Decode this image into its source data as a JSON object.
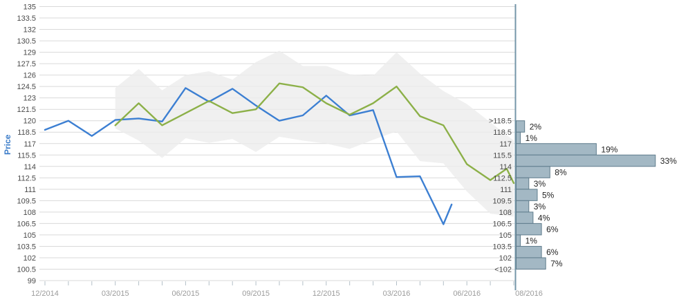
{
  "ylabel": "Price",
  "colors": {
    "blue_line": "#3c7fd2",
    "green_line": "#8cb048",
    "band_fill": "#ececec",
    "gridline": "#d9d9d9",
    "tick": "#b3bfc7",
    "x_label": "#9b9b9b",
    "y_label": "#4a4a4a",
    "bin_label": "#4a4a4a",
    "pct_label": "#1f1f1f",
    "divider": "#7496a8",
    "bar_fill": "#a3b8c4",
    "bar_stroke": "#5f7c8c",
    "ylabel_color": "#3a7bc8"
  },
  "axes": {
    "y_tick_labels": [
      "135",
      "133.5",
      "132",
      "130.5",
      "129",
      "127.5",
      "126",
      "124.5",
      "123",
      "121.5",
      "120",
      "118.5",
      "117",
      "115.5",
      "114",
      "112.5",
      "111",
      "109.5",
      "108",
      "106.5",
      "105",
      "103.5",
      "102",
      "100.5",
      "99"
    ],
    "x_tick_labels": [
      {
        "m": 0,
        "label": "12/2014"
      },
      {
        "m": 3,
        "label": "03/2015"
      },
      {
        "m": 6,
        "label": "06/2015"
      },
      {
        "m": 9,
        "label": "09/2015"
      },
      {
        "m": 12,
        "label": "12/2015"
      },
      {
        "m": 15,
        "label": "03/2016"
      },
      {
        "m": 18,
        "label": "06/2016"
      },
      {
        "m": 20,
        "label": "08/2016"
      }
    ]
  },
  "chart_data": [
    {
      "type": "line",
      "title": "",
      "xlabel": "",
      "ylabel": "Price",
      "ylim": [
        99,
        135
      ],
      "y_step": 1.5,
      "grid": true,
      "legend": "none",
      "x_unit": "months since 12/2014, monthly ticks 12/2014 to 08/2016",
      "series": [
        {
          "name": "blue-price-line",
          "color_key": "blue_line",
          "points": [
            [
              0,
              118.8
            ],
            [
              1,
              120.0
            ],
            [
              2,
              118.0
            ],
            [
              3,
              120.1
            ],
            [
              4,
              120.3
            ],
            [
              5,
              119.9
            ],
            [
              6,
              124.3
            ],
            [
              7,
              122.5
            ],
            [
              8,
              124.2
            ],
            [
              9,
              122.0
            ],
            [
              10,
              120.0
            ],
            [
              11,
              120.7
            ],
            [
              12,
              123.3
            ],
            [
              13,
              120.7
            ],
            [
              14,
              121.4
            ],
            [
              15,
              112.6
            ],
            [
              16,
              112.7
            ],
            [
              17,
              106.4
            ],
            [
              17.35,
              109.0
            ]
          ]
        },
        {
          "name": "green-estimate-line",
          "color_key": "green_line",
          "points": [
            [
              3,
              119.4
            ],
            [
              4,
              122.3
            ],
            [
              5,
              119.4
            ],
            [
              6,
              121.0
            ],
            [
              7,
              122.6
            ],
            [
              8,
              121.0
            ],
            [
              9,
              121.5
            ],
            [
              10,
              124.9
            ],
            [
              11,
              124.4
            ],
            [
              12,
              122.3
            ],
            [
              13,
              120.8
            ],
            [
              14,
              122.3
            ],
            [
              15,
              124.5
            ],
            [
              16,
              120.6
            ],
            [
              17,
              119.4
            ],
            [
              18,
              114.3
            ],
            [
              19,
              112.2
            ],
            [
              19.7,
              113.7
            ],
            [
              20,
              111.8
            ]
          ]
        }
      ],
      "band": {
        "name": "confidence-band",
        "upper": [
          [
            3,
            124.3
          ],
          [
            4,
            126.8
          ],
          [
            5,
            124.0
          ],
          [
            6,
            126.0
          ],
          [
            7,
            126.5
          ],
          [
            8,
            125.4
          ],
          [
            9,
            127.7
          ],
          [
            10,
            129.2
          ],
          [
            11,
            127.2
          ],
          [
            12,
            127.2
          ],
          [
            13,
            126.1
          ],
          [
            14,
            125.9
          ],
          [
            15,
            129.0
          ],
          [
            16,
            126.2
          ],
          [
            17,
            123.9
          ],
          [
            18,
            122.2
          ],
          [
            19,
            119.8
          ],
          [
            20,
            117.4
          ]
        ],
        "lower": [
          [
            3,
            119.0
          ],
          [
            4,
            117.4
          ],
          [
            5,
            115.1
          ],
          [
            6,
            117.7
          ],
          [
            7,
            117.1
          ],
          [
            8,
            117.6
          ],
          [
            9,
            115.9
          ],
          [
            10,
            117.9
          ],
          [
            11,
            117.4
          ],
          [
            12,
            117.0
          ],
          [
            13,
            116.3
          ],
          [
            14,
            117.5
          ],
          [
            15,
            118.6
          ],
          [
            16,
            114.7
          ],
          [
            17,
            114.4
          ],
          [
            18,
            110.7
          ],
          [
            19,
            107.8
          ],
          [
            20,
            107.4
          ]
        ]
      }
    },
    {
      "type": "bar",
      "orientation": "horizontal",
      "title": "",
      "unit": "%",
      "note": "distribution at 08/2016, bins on price axis",
      "bins": [
        {
          "top_label": ">118.5",
          "top": 120,
          "bottom": 118.5,
          "pct": 2
        },
        {
          "top_label": "118.5",
          "top": 118.5,
          "bottom": 117,
          "pct": 1
        },
        {
          "top_label": "117",
          "top": 117,
          "bottom": 115.5,
          "pct": 19
        },
        {
          "top_label": "115.5",
          "top": 115.5,
          "bottom": 114,
          "pct": 33
        },
        {
          "top_label": "114",
          "top": 114,
          "bottom": 112.5,
          "pct": 8
        },
        {
          "top_label": "112.5",
          "top": 112.5,
          "bottom": 111,
          "pct": 3
        },
        {
          "top_label": "111",
          "top": 111,
          "bottom": 109.5,
          "pct": 5
        },
        {
          "top_label": "109.5",
          "top": 109.5,
          "bottom": 108,
          "pct": 3
        },
        {
          "top_label": "108",
          "top": 108,
          "bottom": 106.5,
          "pct": 4
        },
        {
          "top_label": "106.5",
          "top": 106.5,
          "bottom": 105,
          "pct": 6
        },
        {
          "top_label": "105",
          "top": 105,
          "bottom": 103.5,
          "pct": 1
        },
        {
          "top_label": "103.5",
          "top": 103.5,
          "bottom": 102,
          "pct": 6
        },
        {
          "top_label": "102",
          "top": 102,
          "bottom": 100.5,
          "pct": 7,
          "bottom_label": "<102"
        }
      ]
    }
  ]
}
